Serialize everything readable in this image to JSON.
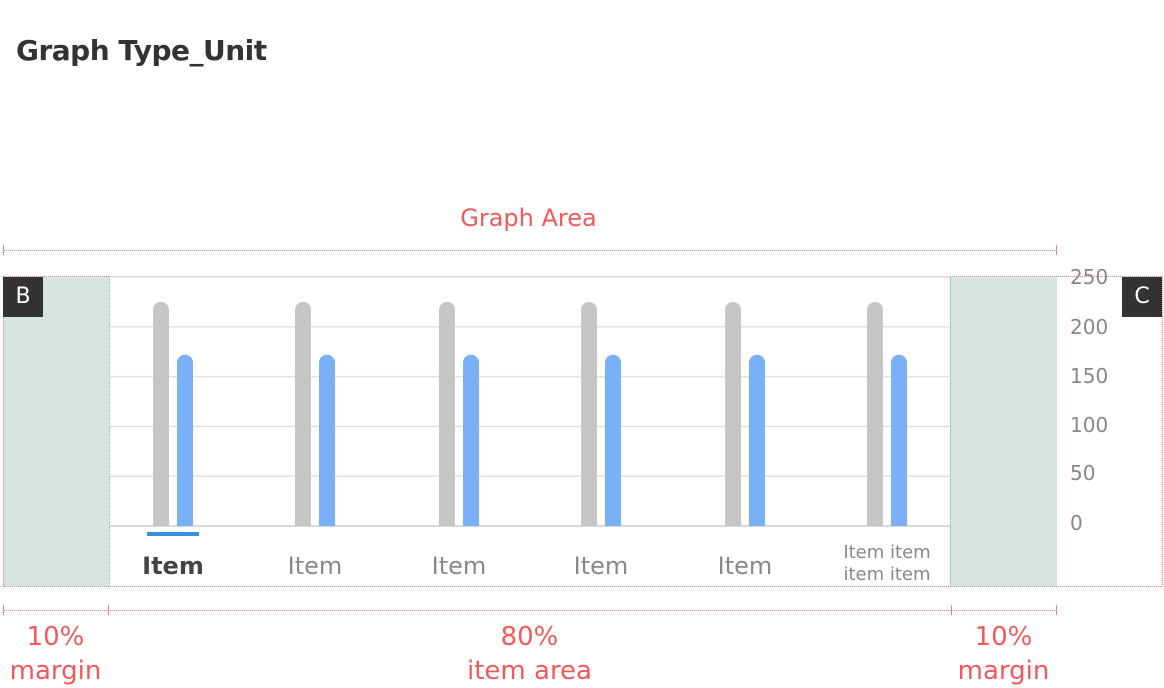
{
  "page": {
    "title": "Graph Type_Unit"
  },
  "annotations": {
    "graph_area": "Graph Area",
    "left_margin": {
      "percent": "10%",
      "label": "margin"
    },
    "item_area": {
      "percent": "80%",
      "label": "item area"
    },
    "right_margin": {
      "percent": "10%",
      "label": "margin"
    },
    "badge_left": "B",
    "badge_right": "C"
  },
  "colors": {
    "gray_bar": "#c6c6c6",
    "blue_bar": "#7ab0f8",
    "selected_underline": "#3a8ee0",
    "annotation": "#f05a5a",
    "margin_fill": "#d6e6df"
  },
  "chart_data": {
    "type": "bar",
    "categories": [
      "Item",
      "Item",
      "Item",
      "Item",
      "Item",
      "Item item item item"
    ],
    "series": [
      {
        "values": [
          225,
          225,
          225,
          225,
          225,
          225
        ]
      },
      {
        "values": [
          172,
          172,
          172,
          172,
          172,
          172
        ]
      }
    ],
    "ylim": [
      0,
      250
    ],
    "yticks": [
      "250",
      "200",
      "150",
      "100",
      "50",
      "0"
    ],
    "selected_category_index": 0,
    "grid": true
  }
}
